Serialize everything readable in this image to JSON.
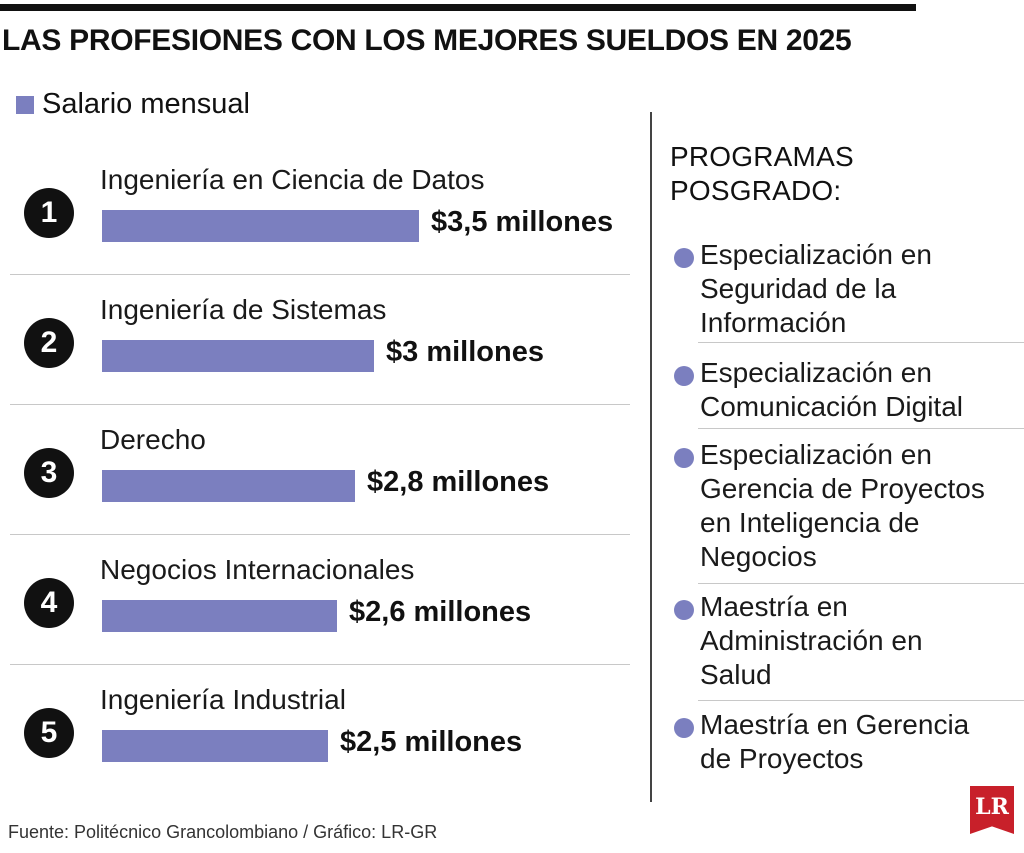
{
  "header": {
    "title": "LAS PROFESIONES CON LOS MEJORES SUELDOS EN 2025",
    "legend_label": "Salario mensual"
  },
  "colors": {
    "bar": "#7b7fbf",
    "text": "#111111",
    "logo": "#c8202a"
  },
  "chart_data": {
    "type": "bar",
    "orientation": "horizontal",
    "title": "LAS PROFESIONES CON LOS MEJORES SUELDOS EN 2025",
    "legend": [
      "Salario mensual"
    ],
    "ranks": [
      "1",
      "2",
      "3",
      "4",
      "5"
    ],
    "categories": [
      "Ingeniería en Ciencia de Datos",
      "Ingeniería de Sistemas",
      "Derecho",
      "Negocios Internacionales",
      "Ingeniería Industrial"
    ],
    "values": [
      3.5,
      3.0,
      2.8,
      2.6,
      2.5
    ],
    "value_labels": [
      "$3,5 millones",
      "$3 millones",
      "$2,8 millones",
      "$2,6 millones",
      "$2,5 millones"
    ],
    "series": [
      {
        "name": "Salario mensual",
        "values": [
          3.5,
          3.0,
          2.8,
          2.6,
          2.5
        ]
      }
    ]
  },
  "sidebar": {
    "title_lines": [
      "PROGRAMAS",
      "POSGRADO:"
    ],
    "programs": [
      {
        "lines": [
          "Especialización en",
          "Seguridad de la",
          "Información"
        ]
      },
      {
        "lines": [
          "Especialización en",
          "Comunicación Digital"
        ]
      },
      {
        "lines": [
          "Especialización en",
          "Gerencia de Proyectos",
          "en Inteligencia de",
          "Negocios"
        ]
      },
      {
        "lines": [
          "Maestría en",
          "Administración en",
          "Salud"
        ]
      },
      {
        "lines": [
          "Maestría en Gerencia",
          "de Proyectos"
        ]
      }
    ]
  },
  "footer": {
    "source": "Fuente: Politécnico Grancolombiano / Gráfico: LR-GR",
    "logo_text": "LR"
  }
}
